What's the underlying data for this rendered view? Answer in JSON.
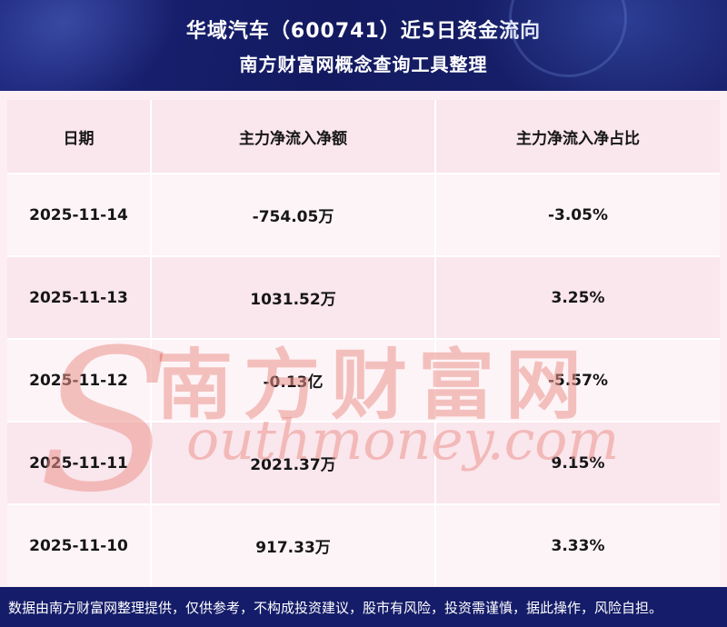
{
  "chart_data": {
    "type": "table",
    "title": "华域汽车（600741）近5日资金流向",
    "subtitle": "南方财富网概念查询工具整理",
    "columns": [
      "日期",
      "主力净流入净额",
      "主力净流入净占比"
    ],
    "rows": [
      [
        "2025-11-14",
        "-754.05万",
        "-3.05%"
      ],
      [
        "2025-11-13",
        "1031.52万",
        "3.25%"
      ],
      [
        "2025-11-12",
        "-0.13亿",
        "-5.57%"
      ],
      [
        "2025-11-11",
        "2021.37万",
        "9.15%"
      ],
      [
        "2025-11-10",
        "917.33万",
        "3.33%"
      ]
    ]
  },
  "watermark": {
    "en_initial": "S",
    "en_rest": "outhmoney.com",
    "full_en": "Southmoney.com",
    "cn": "南方财富网"
  },
  "footer": {
    "disclaimer": "数据由南方财富网整理提供，仅供参考，不构成投资建议，股市有风险，投资需谨慎，据此操作，风险自担。"
  },
  "colors": {
    "header_bg": "#151c69",
    "footer_bg": "#151c69",
    "row_light": "#fdf4f7",
    "row_pink": "#fae6ed",
    "page_bg": "#fceef3",
    "watermark": "#eb948c",
    "cell_text": "#161616",
    "title_text": "#ffffff"
  }
}
